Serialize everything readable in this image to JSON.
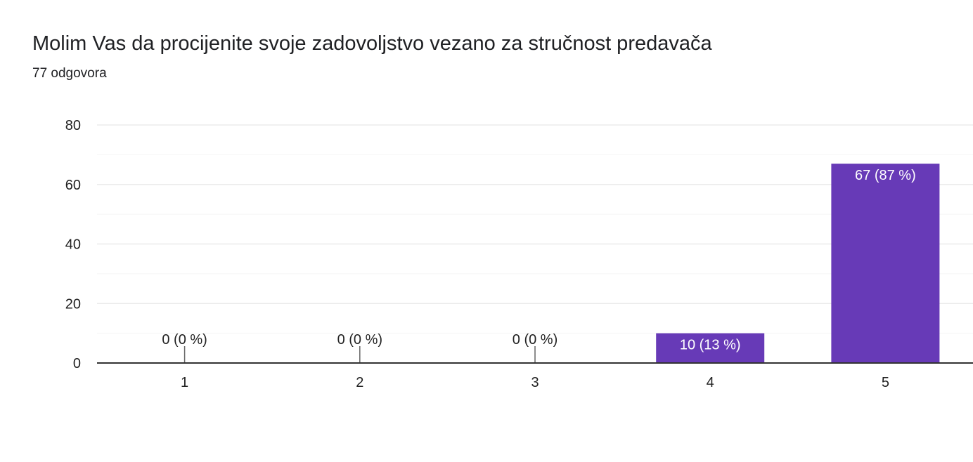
{
  "header": {
    "title": "Molim Vas da procijenite svoje zadovoljstvo vezano za stručnost predavača",
    "responses": "77 odgovora"
  },
  "colors": {
    "bar": "#673ab7",
    "gridline": "#ebebeb",
    "minor_gridline": "#f5f5f5",
    "axis": "#333333",
    "text": "#202124",
    "label_inside": "#ffffff",
    "label_outside": "#222222"
  },
  "chart_data": {
    "type": "bar",
    "title": "Molim Vas da procijenite svoje zadovoljstvo vezano za stručnost predavača",
    "xlabel": "",
    "ylabel": "",
    "categories": [
      "1",
      "2",
      "3",
      "4",
      "5"
    ],
    "values": [
      0,
      0,
      0,
      10,
      67
    ],
    "data_labels": [
      "0 (0 %)",
      "0 (0 %)",
      "0 (0 %)",
      "10 (13 %)",
      "67 (87 %)"
    ],
    "ylim": [
      0,
      80
    ],
    "yticks": [
      0,
      20,
      40,
      60,
      80
    ],
    "minor_yticks": [
      10,
      30,
      50,
      70
    ],
    "grid": true,
    "legend": "none"
  }
}
